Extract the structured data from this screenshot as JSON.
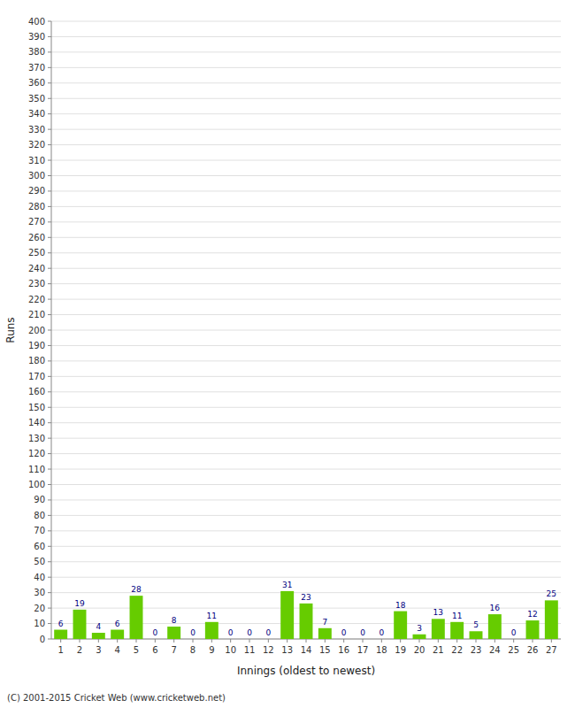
{
  "chart_data": {
    "type": "bar",
    "categories": [
      "1",
      "2",
      "3",
      "4",
      "5",
      "6",
      "7",
      "8",
      "9",
      "10",
      "11",
      "12",
      "13",
      "14",
      "15",
      "16",
      "17",
      "18",
      "19",
      "20",
      "21",
      "22",
      "23",
      "24",
      "25",
      "26",
      "27"
    ],
    "values": [
      6,
      19,
      4,
      6,
      28,
      0,
      8,
      0,
      11,
      0,
      0,
      0,
      31,
      23,
      7,
      0,
      0,
      0,
      18,
      3,
      13,
      11,
      5,
      16,
      0,
      12,
      25
    ],
    "color": "#66cc00",
    "x_label": "Innings (oldest to newest)",
    "y_label": "Runs",
    "ylim": [
      0,
      400
    ],
    "yticks": [
      0,
      10,
      20,
      30,
      40,
      50,
      60,
      70,
      80,
      90,
      100,
      110,
      120,
      130,
      140,
      150,
      160,
      170,
      180,
      190,
      200,
      210,
      220,
      230,
      240,
      250,
      260,
      270,
      280,
      290,
      300,
      310,
      320,
      330,
      340,
      350,
      360,
      370,
      380,
      390,
      400
    ],
    "grid": true,
    "data_labels": true,
    "annotations": [
      "(C) 2001-2015 Cricket Web (www.cricketweb.net)"
    ]
  }
}
